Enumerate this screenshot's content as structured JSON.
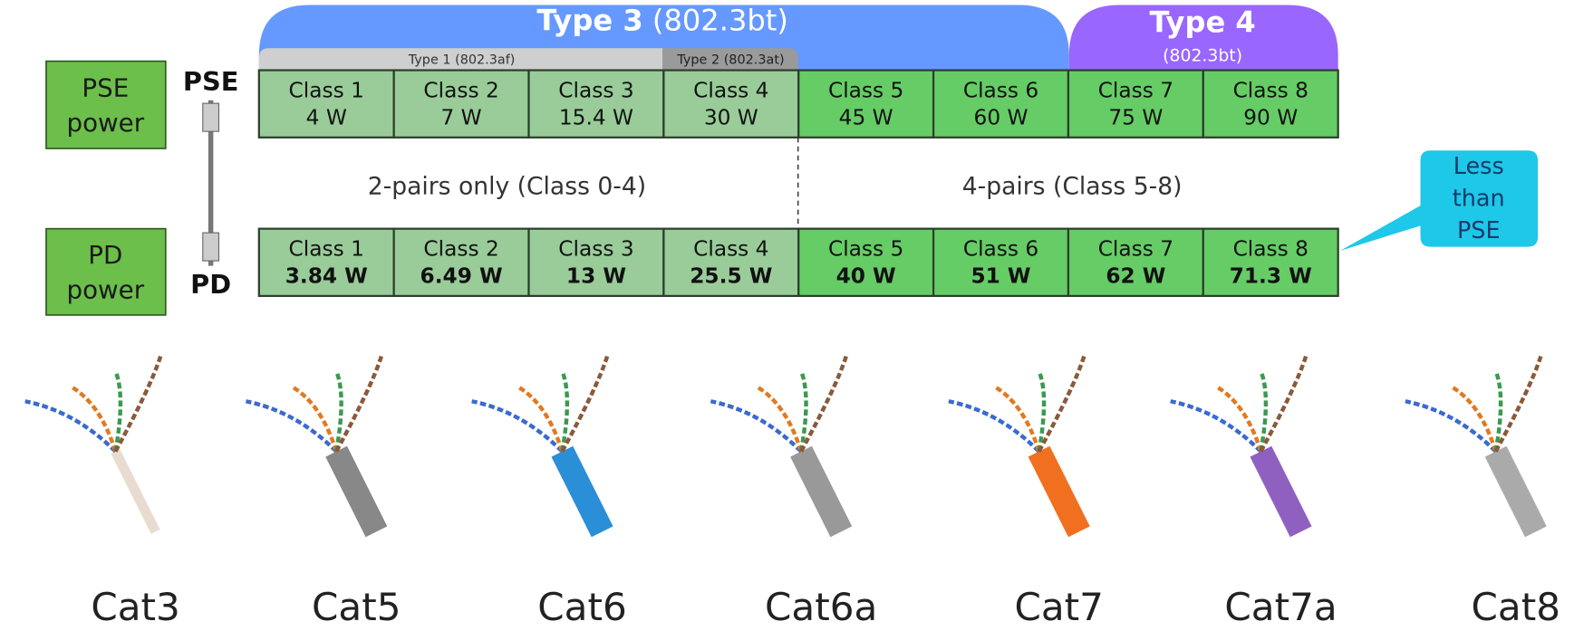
{
  "header": {
    "type3": {
      "title": "Type 3",
      "std": "(802.3bt)"
    },
    "type4": {
      "title": "Type 4",
      "std": "(802.3bt)"
    },
    "type1": "Type 1 (802.3af)",
    "type2": "Type 2 (802.3at)"
  },
  "rows": {
    "pse": {
      "label": [
        "PSE",
        "power"
      ],
      "connector": "PSE",
      "cells": [
        [
          "Class 1",
          "4 W"
        ],
        [
          "Class 2",
          "7 W"
        ],
        [
          "Class 3",
          "15.4 W"
        ],
        [
          "Class 4",
          "30 W"
        ],
        [
          "Class 5",
          "45 W"
        ],
        [
          "Class 6",
          "60 W"
        ],
        [
          "Class 7",
          "75 W"
        ],
        [
          "Class 8",
          "90 W"
        ]
      ]
    },
    "pd": {
      "label": [
        "PD",
        "power"
      ],
      "connector": "PD",
      "cells": [
        [
          "Class 1",
          "3.84 W"
        ],
        [
          "Class 2",
          "6.49 W"
        ],
        [
          "Class 3",
          "13 W"
        ],
        [
          "Class 4",
          "25.5 W"
        ],
        [
          "Class 5",
          "40 W"
        ],
        [
          "Class 6",
          "51 W"
        ],
        [
          "Class 7",
          "62 W"
        ],
        [
          "Class 8",
          "71.3 W"
        ]
      ]
    }
  },
  "pairs": {
    "two": "2-pairs only (Class 0-4)",
    "four": "4-pairs (Class 5-8)"
  },
  "callout": [
    "Less",
    "than",
    "PSE"
  ],
  "cables": [
    "Cat3",
    "Cat5",
    "Cat6",
    "Cat6a",
    "Cat7",
    "Cat7a",
    "Cat8"
  ]
}
